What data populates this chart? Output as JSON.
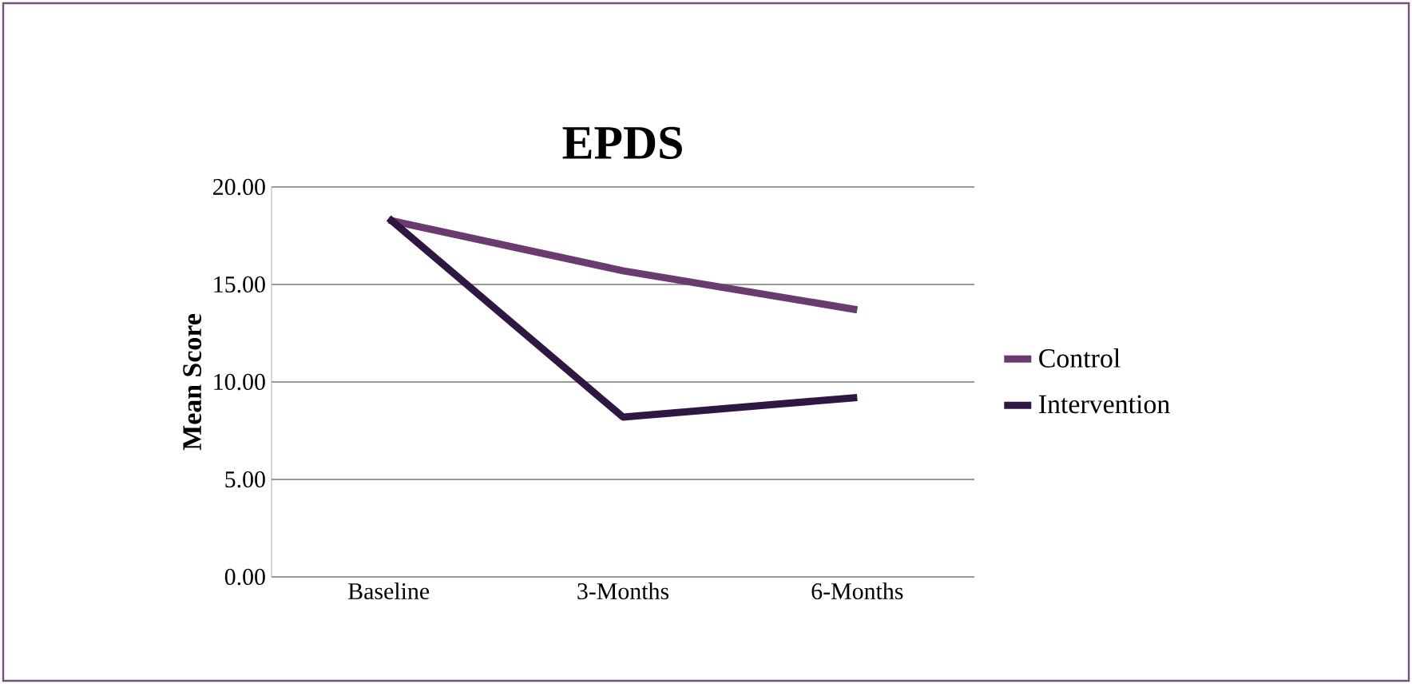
{
  "chart_data": {
    "type": "line",
    "title": "EPDS",
    "ylabel": "Mean Score",
    "categories": [
      "Baseline",
      "3-Months",
      "6-Months"
    ],
    "series": [
      {
        "name": "Control",
        "color": "#6b3a6e",
        "values": [
          18.3,
          15.7,
          13.7
        ]
      },
      {
        "name": "Intervention",
        "color": "#2e1740",
        "values": [
          18.4,
          8.2,
          9.2
        ]
      }
    ],
    "ylim": [
      0,
      20
    ],
    "yticks": [
      {
        "value": 0,
        "label": "0.00"
      },
      {
        "value": 5,
        "label": "5.00"
      },
      {
        "value": 10,
        "label": "10.00"
      },
      {
        "value": 15,
        "label": "15.00"
      },
      {
        "value": 20,
        "label": "20.00"
      }
    ],
    "grid": "y",
    "legend": "right",
    "marker": "none",
    "line_style": "solid"
  }
}
